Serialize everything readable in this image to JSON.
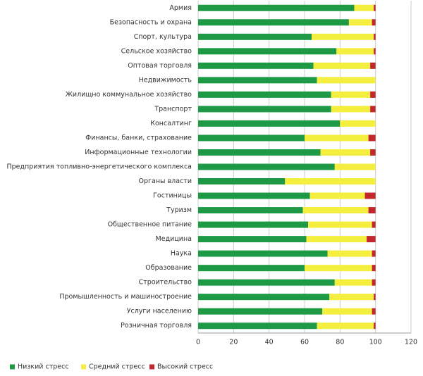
{
  "chart_data": {
    "type": "stacked-bar-horizontal",
    "categories": [
      "Армия",
      "Безопасность и охрана",
      "Спорт, культура",
      "Сельское хозяйство",
      "Оптовая торговля",
      "Недвижимость",
      "Жилищно коммунальное хозяйство",
      "Транспорт",
      "Консалтинг",
      "Финансы, банки, страхование",
      "Информационные технологии",
      "Предприятия топливно-энергетического комплекса",
      "Органы власти",
      "Гостиницы",
      "Туризм",
      "Общественное питание",
      "Медицина",
      "Наука",
      "Образование",
      "Строительство",
      "Промышленность и машиностроение",
      "Услуги населению",
      "Розничная торговля"
    ],
    "series": [
      {
        "name": "Низкий стресс",
        "color": "#1e9a46",
        "values": [
          88,
          85,
          64,
          78,
          65,
          67,
          75,
          75,
          80,
          60,
          69,
          77,
          49,
          63,
          59,
          62,
          61,
          73,
          60,
          77,
          74,
          70,
          67
        ]
      },
      {
        "name": "Средний стресс",
        "color": "#f4ee3e",
        "values": [
          11,
          13,
          35,
          21,
          32,
          33,
          22,
          22,
          20,
          36,
          28,
          23,
          51,
          31,
          37,
          36,
          34,
          25,
          38,
          21,
          25,
          28,
          32
        ]
      },
      {
        "name": "Высокий стресс",
        "color": "#c1272d",
        "values": [
          1,
          2,
          1,
          1,
          3,
          0,
          3,
          3,
          0,
          4,
          3,
          0,
          0,
          6,
          4,
          2,
          5,
          2,
          2,
          2,
          1,
          2,
          1
        ]
      }
    ],
    "xlim": [
      0,
      120
    ],
    "xticks": [
      0,
      20,
      40,
      60,
      80,
      100,
      120
    ],
    "grid": true,
    "legend": "bottom"
  }
}
